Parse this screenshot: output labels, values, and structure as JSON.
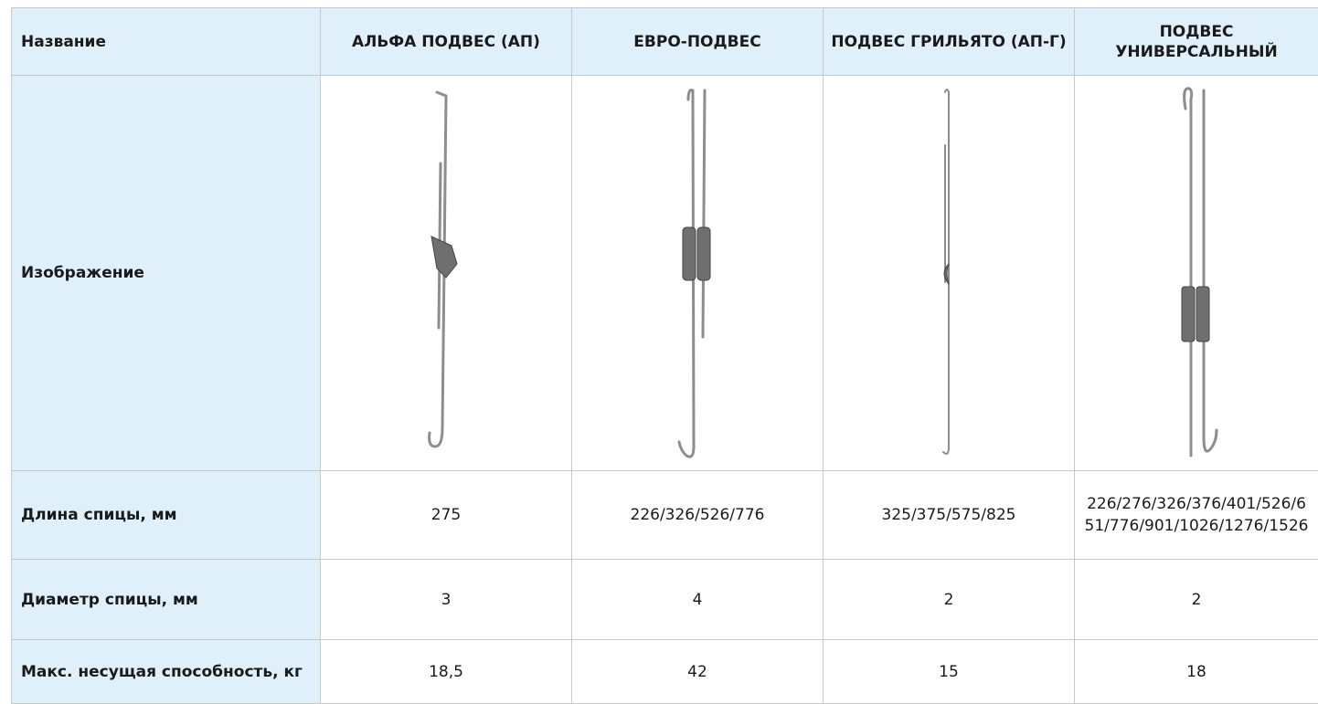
{
  "table": {
    "header": [
      "Название",
      "АЛЬФА ПОДВЕС (АП)",
      "ЕВРО-ПОДВЕС",
      "ПОДВЕС ГРИЛЬЯТО (АП-Г)",
      "ПОДВЕС УНИВЕРСАЛЬНЫЙ"
    ],
    "image_row_label": "Изображение",
    "rows": [
      [
        "Длина спицы, мм",
        "275",
        "226/326/526/776",
        "325/375/575/825",
        "226/276/326/376/401/526/651/776/901/1026/1276/1526"
      ],
      [
        "Диаметр спицы, мм",
        "3",
        "4",
        "2",
        "2"
      ],
      [
        "Макс. несущая способность, кг",
        "18,5",
        "42",
        "15",
        "18"
      ]
    ]
  }
}
